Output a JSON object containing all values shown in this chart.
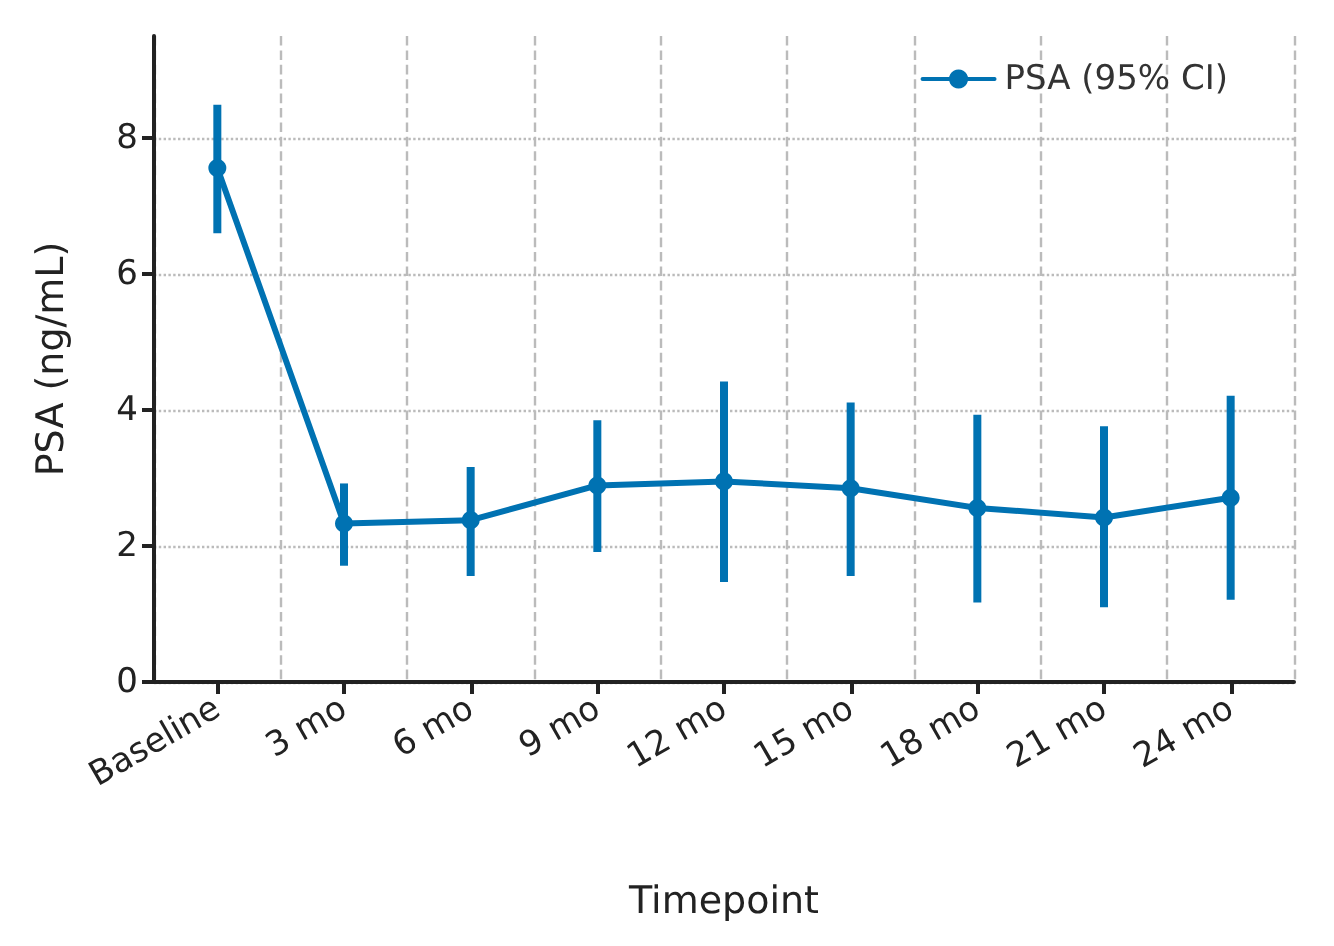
{
  "chart_data": {
    "type": "line",
    "xlabel": "Timepoint",
    "ylabel": "PSA (ng/mL)",
    "categories": [
      "Baseline",
      "3 mo",
      "6 mo",
      "9 mo",
      "12 mo",
      "15 mo",
      "18 mo",
      "21 mo",
      "24 mo"
    ],
    "series": [
      {
        "name": "PSA (95% CI)",
        "color": "#0072b2",
        "values": [
          7.56,
          2.33,
          2.38,
          2.89,
          2.95,
          2.85,
          2.56,
          2.42,
          2.71
        ],
        "errors": [
          [
            6.6,
            8.49
          ],
          [
            1.71,
            2.92
          ],
          [
            1.56,
            3.16
          ],
          [
            1.91,
            3.85
          ],
          [
            1.47,
            4.42
          ],
          [
            1.56,
            4.11
          ],
          [
            1.17,
            3.93
          ],
          [
            1.1,
            3.76
          ],
          [
            1.21,
            4.21
          ]
        ]
      }
    ],
    "ylim": [
      0,
      9.5
    ],
    "yticks": [
      0,
      2,
      4,
      6,
      8
    ],
    "grid": true,
    "legend": "top right",
    "marker": "circle",
    "line_style": "solid"
  }
}
